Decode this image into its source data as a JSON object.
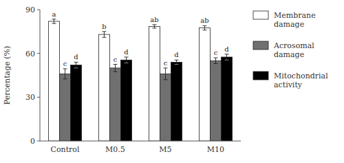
{
  "chart_data": {
    "type": "bar",
    "categories": [
      "Control",
      "M0.5",
      "M5",
      "M10"
    ],
    "y_label": "Percentage (%)",
    "series": [
      {
        "name": "Membrane\ndamage",
        "color": "white",
        "values": [
          82.0,
          73.0,
          78.5,
          77.5
        ],
        "errors": [
          1.5,
          2.0,
          1.2,
          1.5
        ],
        "annotations": [
          "a",
          "b",
          "ab",
          "ab"
        ]
      },
      {
        "name": "Acrosomal\ndamage",
        "color": "#707070",
        "values": [
          46.0,
          50.0,
          46.0,
          55.0
        ],
        "errors": [
          3.5,
          2.5,
          4.0,
          2.0
        ],
        "annotations": [
          "c",
          "c",
          "c",
          "c"
        ]
      },
      {
        "name": "Mitochondrial\nactivity",
        "color": "black",
        "values": [
          52.0,
          55.5,
          54.0,
          57.5
        ],
        "errors": [
          2.0,
          2.0,
          1.5,
          2.0
        ],
        "annotations": [
          "d",
          "d",
          "d",
          "d"
        ]
      }
    ],
    "ylim": [
      0,
      90
    ],
    "yticks": [
      0,
      30,
      60,
      90
    ],
    "grid": false,
    "legend": "right"
  }
}
